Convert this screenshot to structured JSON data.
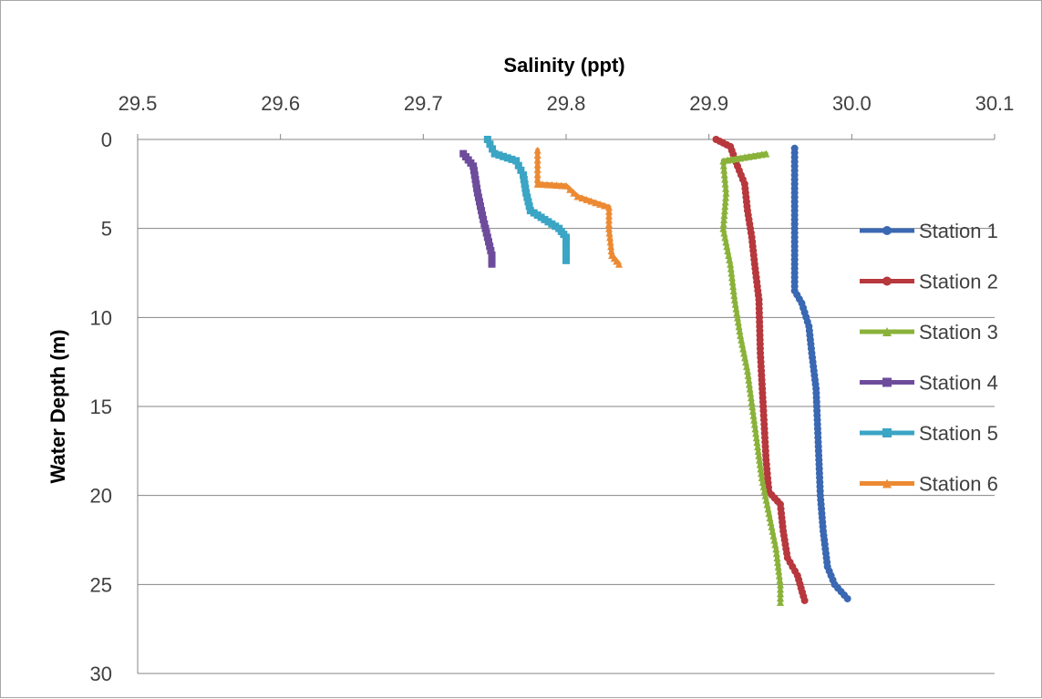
{
  "chart_data": {
    "type": "line",
    "xlabel": "Salinity (ppt)",
    "ylabel": "Water Depth (m)",
    "xlim": [
      29.5,
      30.1
    ],
    "ylim": [
      0,
      30
    ],
    "y_inverted": true,
    "x_axis_position": "top",
    "x_ticks": [
      "29.5",
      "29.6",
      "29.7",
      "29.8",
      "29.9",
      "30.0",
      "30.1"
    ],
    "y_ticks": [
      "0",
      "5",
      "10",
      "15",
      "20",
      "25",
      "30"
    ],
    "grid": true,
    "legend_position": "right",
    "series": [
      {
        "name": "Station 1",
        "color": "#3a68b2",
        "marker": "circle",
        "points": [
          [
            29.96,
            0.5
          ],
          [
            29.96,
            2
          ],
          [
            29.96,
            4
          ],
          [
            29.96,
            6
          ],
          [
            29.96,
            8.5
          ],
          [
            29.965,
            9.2
          ],
          [
            29.97,
            10.5
          ],
          [
            29.972,
            12
          ],
          [
            29.975,
            14
          ],
          [
            29.976,
            16
          ],
          [
            29.977,
            18
          ],
          [
            29.978,
            20
          ],
          [
            29.98,
            22
          ],
          [
            29.983,
            24
          ],
          [
            29.988,
            25
          ],
          [
            29.997,
            25.8
          ]
        ]
      },
      {
        "name": "Station 2",
        "color": "#b7383d",
        "marker": "circle",
        "points": [
          [
            29.905,
            0
          ],
          [
            29.915,
            0.4
          ],
          [
            29.92,
            1.5
          ],
          [
            29.925,
            2.5
          ],
          [
            29.927,
            4
          ],
          [
            29.93,
            5.5
          ],
          [
            29.932,
            7
          ],
          [
            29.935,
            9
          ],
          [
            29.936,
            12
          ],
          [
            29.938,
            15
          ],
          [
            29.94,
            18
          ],
          [
            29.942,
            19.8
          ],
          [
            29.95,
            20.5
          ],
          [
            29.952,
            22
          ],
          [
            29.955,
            23.5
          ],
          [
            29.962,
            24.5
          ],
          [
            29.967,
            25.9
          ]
        ]
      },
      {
        "name": "Station 3",
        "color": "#8ab23a",
        "marker": "triangle",
        "points": [
          [
            29.94,
            0.8
          ],
          [
            29.91,
            1.2
          ],
          [
            29.912,
            3
          ],
          [
            29.91,
            5
          ],
          [
            29.915,
            7
          ],
          [
            29.918,
            9
          ],
          [
            29.922,
            11
          ],
          [
            29.927,
            13
          ],
          [
            29.932,
            16
          ],
          [
            29.937,
            19
          ],
          [
            29.942,
            21
          ],
          [
            29.947,
            23
          ],
          [
            29.95,
            25
          ],
          [
            29.95,
            26
          ]
        ]
      },
      {
        "name": "Station 4",
        "color": "#6e4c9c",
        "marker": "square",
        "points": [
          [
            29.728,
            0.8
          ],
          [
            29.735,
            1.5
          ],
          [
            29.738,
            3
          ],
          [
            29.742,
            4.5
          ],
          [
            29.745,
            5.5
          ],
          [
            29.748,
            6.5
          ],
          [
            29.748,
            7
          ]
        ]
      },
      {
        "name": "Station 5",
        "color": "#3aa5c4",
        "marker": "square",
        "points": [
          [
            29.745,
            0
          ],
          [
            29.75,
            0.8
          ],
          [
            29.765,
            1.2
          ],
          [
            29.77,
            2
          ],
          [
            29.772,
            3
          ],
          [
            29.775,
            4
          ],
          [
            29.785,
            4.5
          ],
          [
            29.795,
            5
          ],
          [
            29.8,
            5.5
          ],
          [
            29.8,
            6.5
          ],
          [
            29.8,
            6.8
          ]
        ]
      },
      {
        "name": "Station 6",
        "color": "#ec8a33",
        "marker": "triangle",
        "points": [
          [
            29.78,
            0.6
          ],
          [
            29.78,
            2.5
          ],
          [
            29.8,
            2.6
          ],
          [
            29.808,
            3.2
          ],
          [
            29.83,
            3.8
          ],
          [
            29.83,
            5
          ],
          [
            29.832,
            6.5
          ],
          [
            29.837,
            7
          ]
        ]
      }
    ]
  }
}
